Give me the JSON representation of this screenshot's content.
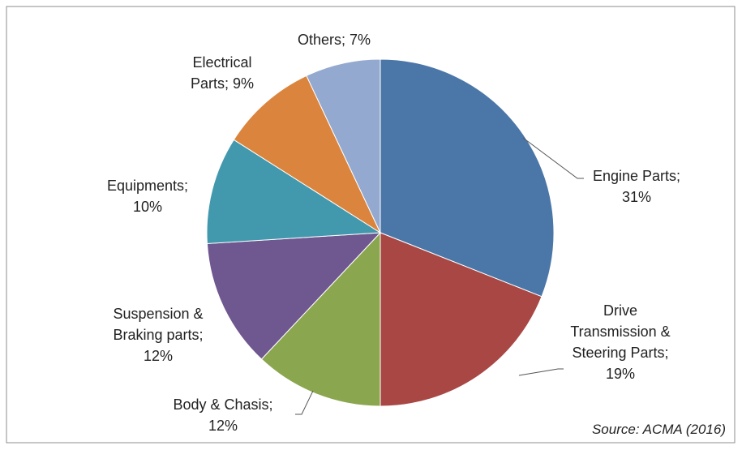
{
  "chart_data": {
    "type": "pie",
    "labels": [
      "Engine Parts; 31%",
      "Drive Transmission & Steering Parts; 19%",
      "Body & Chasis; 12%",
      "Suspension & Braking parts; 12%",
      "Equipments; 10%",
      "Electrical Parts; 9%",
      "Others; 7%"
    ],
    "values": [
      31,
      19,
      12,
      12,
      10,
      9,
      7
    ],
    "colors": [
      "#4a76a8",
      "#a84744",
      "#8aa64f",
      "#6f578f",
      "#4299ae",
      "#db843d",
      "#93a9cf"
    ],
    "annotation": "Source: ACMA (2016)"
  }
}
